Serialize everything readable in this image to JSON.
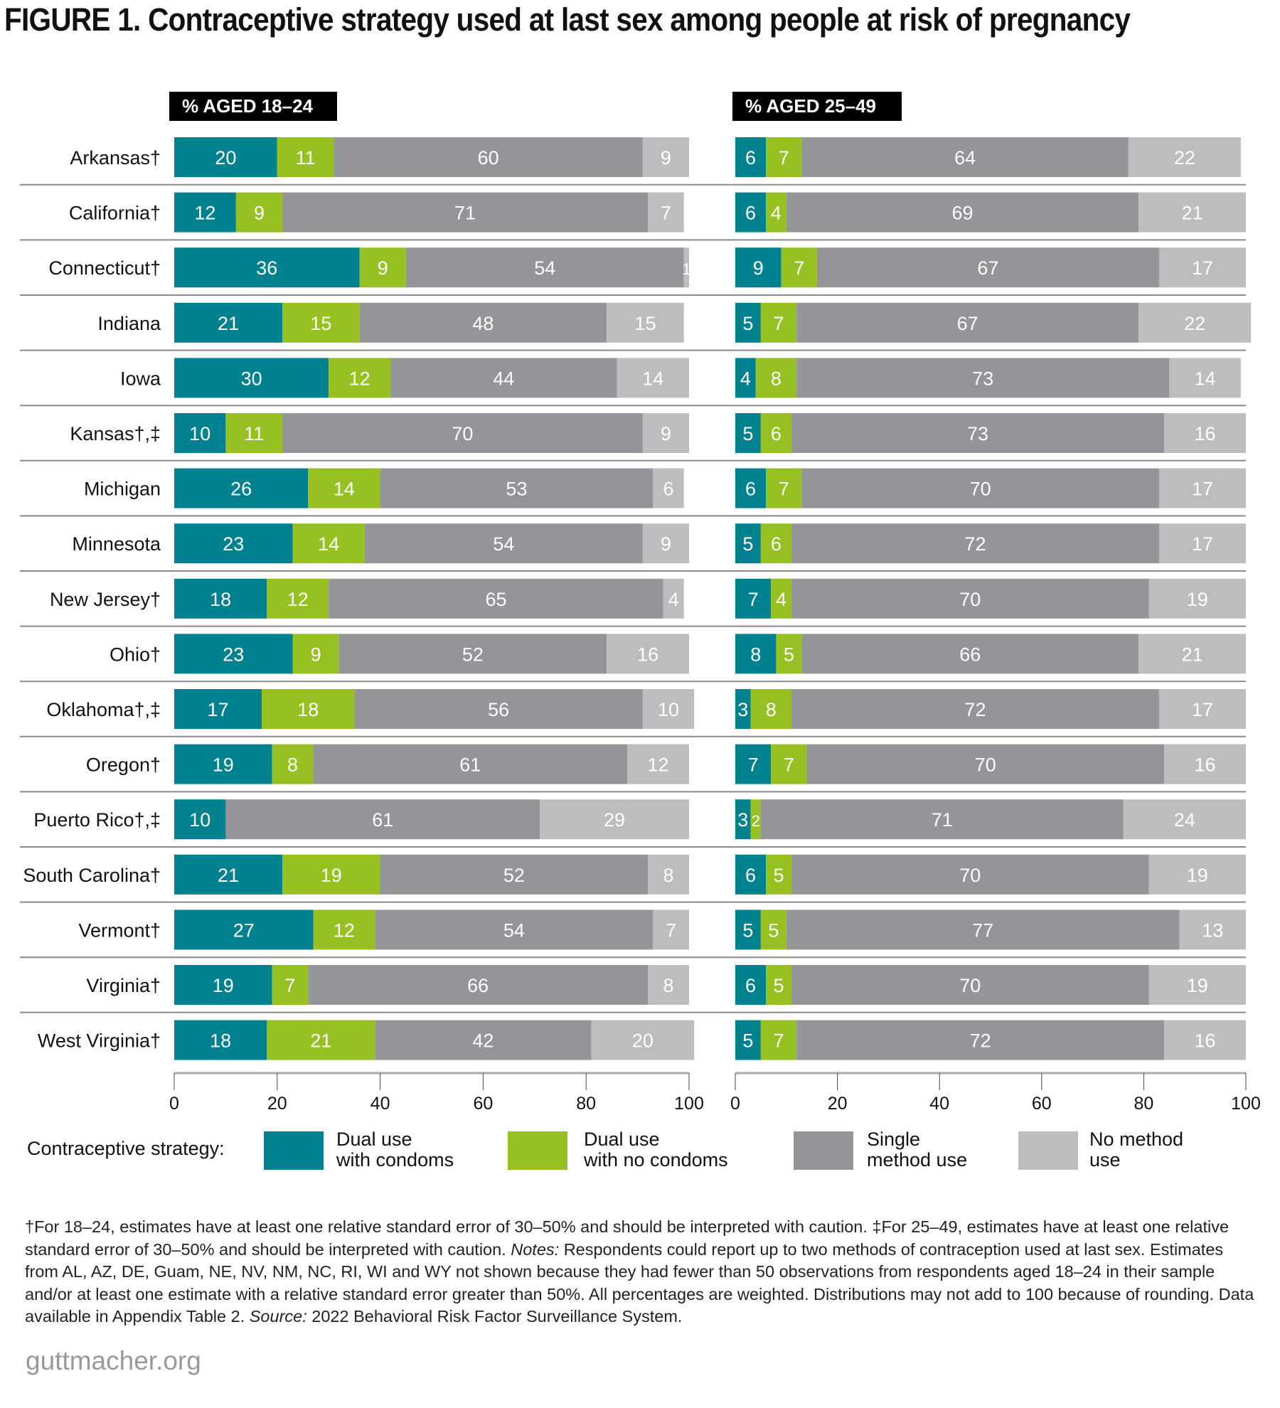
{
  "title": "FIGURE 1. Contraceptive strategy used at last sex among people at risk of pregnancy",
  "chart_data": {
    "type": "bar",
    "orientation": "horizontal",
    "stacked": true,
    "categories": [
      "Arkansas†",
      "California†",
      "Connecticut†",
      "Indiana",
      "Iowa",
      "Kansas†,‡",
      "Michigan",
      "Minnesota",
      "New Jersey†",
      "Ohio†",
      "Oklahoma†,‡",
      "Oregon†",
      "Puerto Rico†,‡",
      "South Carolina†",
      "Vermont†",
      "Virginia†",
      "West Virginia†"
    ],
    "panels": [
      {
        "title": "% AGED 18–24",
        "xlim": [
          0,
          100
        ],
        "xticks": [
          "0",
          "20",
          "40",
          "60",
          "80",
          "100"
        ],
        "series": [
          {
            "name": "Dual use with condoms",
            "values": [
              20,
              12,
              36,
              21,
              30,
              10,
              26,
              23,
              18,
              23,
              17,
              19,
              10,
              21,
              27,
              19,
              18
            ]
          },
          {
            "name": "Dual use with no condoms",
            "values": [
              11,
              9,
              9,
              15,
              12,
              11,
              14,
              14,
              12,
              9,
              18,
              8,
              0,
              19,
              12,
              7,
              21
            ]
          },
          {
            "name": "Single method use",
            "values": [
              60,
              71,
              54,
              48,
              44,
              70,
              53,
              54,
              65,
              52,
              56,
              61,
              61,
              52,
              54,
              66,
              42
            ]
          },
          {
            "name": "No method use",
            "values": [
              9,
              7,
              1,
              15,
              14,
              9,
              6,
              9,
              4,
              16,
              10,
              12,
              29,
              8,
              7,
              8,
              20
            ]
          }
        ]
      },
      {
        "title": "% AGED 25–49",
        "xlim": [
          0,
          100
        ],
        "xticks": [
          "0",
          "20",
          "40",
          "60",
          "80",
          "100"
        ],
        "series": [
          {
            "name": "Dual use with condoms",
            "values": [
              6,
              6,
              9,
              5,
              4,
              5,
              6,
              5,
              7,
              8,
              3,
              7,
              3,
              6,
              5,
              6,
              5
            ]
          },
          {
            "name": "Dual use with no condoms",
            "values": [
              7,
              4,
              7,
              7,
              8,
              6,
              7,
              6,
              4,
              5,
              8,
              7,
              2,
              5,
              5,
              5,
              7
            ]
          },
          {
            "name": "Single method use",
            "values": [
              64,
              69,
              67,
              67,
              73,
              73,
              70,
              72,
              70,
              66,
              72,
              70,
              71,
              70,
              77,
              70,
              72
            ]
          },
          {
            "name": "No method use",
            "values": [
              22,
              21,
              17,
              22,
              14,
              16,
              17,
              17,
              19,
              21,
              17,
              16,
              24,
              19,
              13,
              19,
              16
            ]
          }
        ]
      }
    ],
    "legend": {
      "title": "Contraceptive strategy:",
      "placement": "bottom",
      "items": [
        "Dual use\nwith condoms",
        "Dual use\nwith no condoms",
        "Single\nmethod use",
        "No method\nuse"
      ]
    },
    "colors": [
      "#00818f",
      "#97c023",
      "#939598",
      "#bcbdbf"
    ],
    "grid": false
  },
  "footnote": [
    {
      "text": "†For 18–24, estimates have at least one relative standard error of 30–50% and should be interpreted with caution. ‡For 25–49, estimates have at least one relative standard error of 30–50% and should be interpreted with caution. ",
      "italic": false
    },
    {
      "text": "Notes:",
      "italic": true
    },
    {
      "text": " Respondents could report up to two methods of contraception used at last sex. Estimates from AL, AZ, DE, Guam, NE, NV, NM, NC, RI, WI and WY not shown because they had fewer than 50 observations from respondents aged 18–24 in their sample and/or at least one estimate with a relative standard error greater than 50%. All percentages are weighted. Distributions may not add to 100 because of rounding. Data available in Appendix Table 2. ",
      "italic": false
    },
    {
      "text": "Source:",
      "italic": true
    },
    {
      "text": " 2022 Behavioral Risk Factor Surveillance System.",
      "italic": false
    }
  ],
  "brand": "guttmacher.org"
}
